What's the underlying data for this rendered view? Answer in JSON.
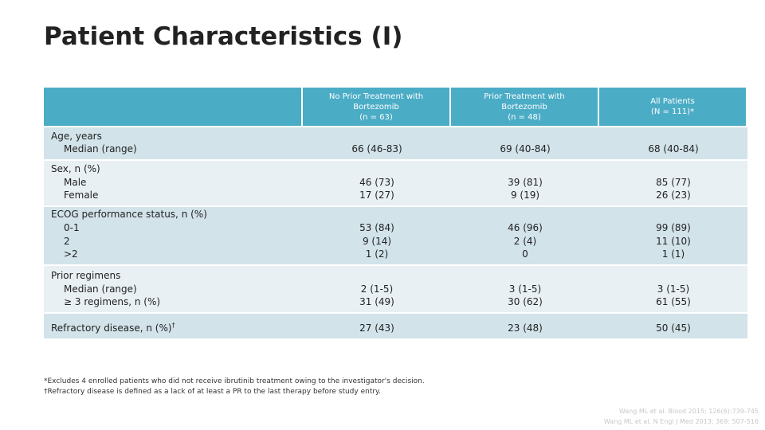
{
  "header": {
    "title": "Patient Characteristics (I)"
  },
  "table": {
    "columns": [
      [
        "No Prior Treatment with",
        "Bortezomib",
        "(n = 63)"
      ],
      [
        "Prior Treatment with",
        "Bortezomib",
        "(n = 48)"
      ],
      [
        "All Patients",
        "(N = 111)*"
      ]
    ],
    "rows": [
      {
        "label": [
          "Age, years",
          "Median (range)"
        ],
        "cells": [
          [
            "66 (46-83)"
          ],
          [
            "69 (40-84)"
          ],
          [
            "68 (40-84)"
          ]
        ]
      },
      {
        "label": [
          "Sex, n (%)",
          "Male",
          "Female"
        ],
        "cells": [
          [
            "46 (73)",
            "17 (27)"
          ],
          [
            "39 (81)",
            "9 (19)"
          ],
          [
            "85 (77)",
            "26 (23)"
          ]
        ]
      },
      {
        "label": [
          "ECOG performance status, n (%)",
          "0-1",
          "2",
          ">2"
        ],
        "cells": [
          [
            "53 (84)",
            "9 (14)",
            "1 (2)"
          ],
          [
            "46 (96)",
            "2 (4)",
            "0"
          ],
          [
            "99 (89)",
            "11 (10)",
            "1 (1)"
          ]
        ]
      },
      {
        "label": [
          "Prior regimens",
          "Median (range)",
          "≥ 3 regimens, n (%)"
        ],
        "cells": [
          [
            "2 (1-5)",
            "31 (49)"
          ],
          [
            "3 (1-5)",
            "30 (62)"
          ],
          [
            "3 (1-5)",
            "61 (55)"
          ]
        ]
      },
      {
        "label": [
          "Refractory disease, n (%)"
        ],
        "label_sup": "†",
        "cells": [
          [
            "27 (43)"
          ],
          [
            "23 (48)"
          ],
          [
            "50 (45)"
          ]
        ]
      }
    ]
  },
  "footnotes": [
    "*Excludes 4 enrolled patients who did not receive ibrutinib treatment owing to the investigator's decision.",
    "†Refractory disease is defined as a lack of at least a PR to the last therapy before study entry."
  ],
  "citations": [
    "Wang ML et al. Blood 2015; 126(6):739-745",
    "Wang ML et al. N Engl J Med 2013; 369: 507-516"
  ]
}
